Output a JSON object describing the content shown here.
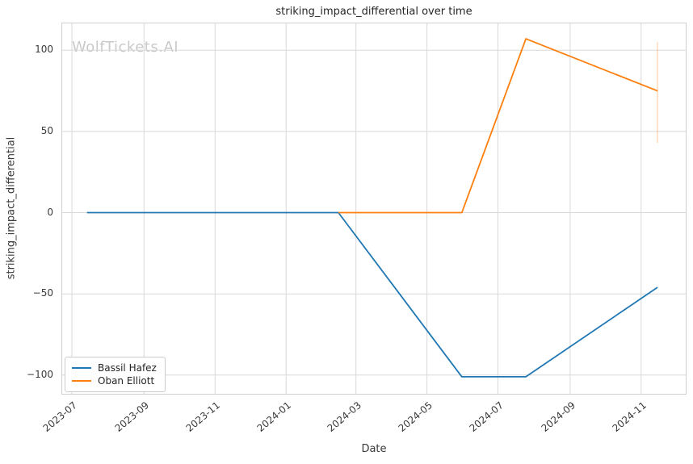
{
  "watermark": "WolfTickets.AI",
  "chart_data": {
    "type": "line",
    "title": "striking_impact_differential over time",
    "xlabel": "Date",
    "ylabel": "striking_impact_differential",
    "grid": true,
    "legend_position": "lower left",
    "x_tick_labels": [
      "2023-07",
      "2023-09",
      "2023-11",
      "2024-01",
      "2024-03",
      "2024-05",
      "2024-07",
      "2024-09",
      "2024-11"
    ],
    "y_ticks": [
      100,
      50,
      0,
      -50,
      -100
    ],
    "ylim": [
      -112,
      117
    ],
    "xlim_dates": [
      "2023-06-22",
      "2024-12-10"
    ],
    "series": [
      {
        "name": "Bassil Hafez",
        "color": "#1f77b4",
        "points": [
          [
            "2023-07-14",
            0
          ],
          [
            "2024-02-15",
            0
          ],
          [
            "2024-05-31",
            -101
          ],
          [
            "2024-07-25",
            -101
          ],
          [
            "2024-11-15",
            -46
          ]
        ]
      },
      {
        "name": "Oban Elliott",
        "color": "#ff7f0e",
        "points": [
          [
            "2024-02-15",
            0
          ],
          [
            "2024-05-31",
            0
          ],
          [
            "2024-07-25",
            107
          ],
          [
            "2024-11-15",
            75
          ]
        ],
        "error_bar": {
          "date": "2024-11-15",
          "low": 43,
          "high": 105
        }
      }
    ]
  }
}
